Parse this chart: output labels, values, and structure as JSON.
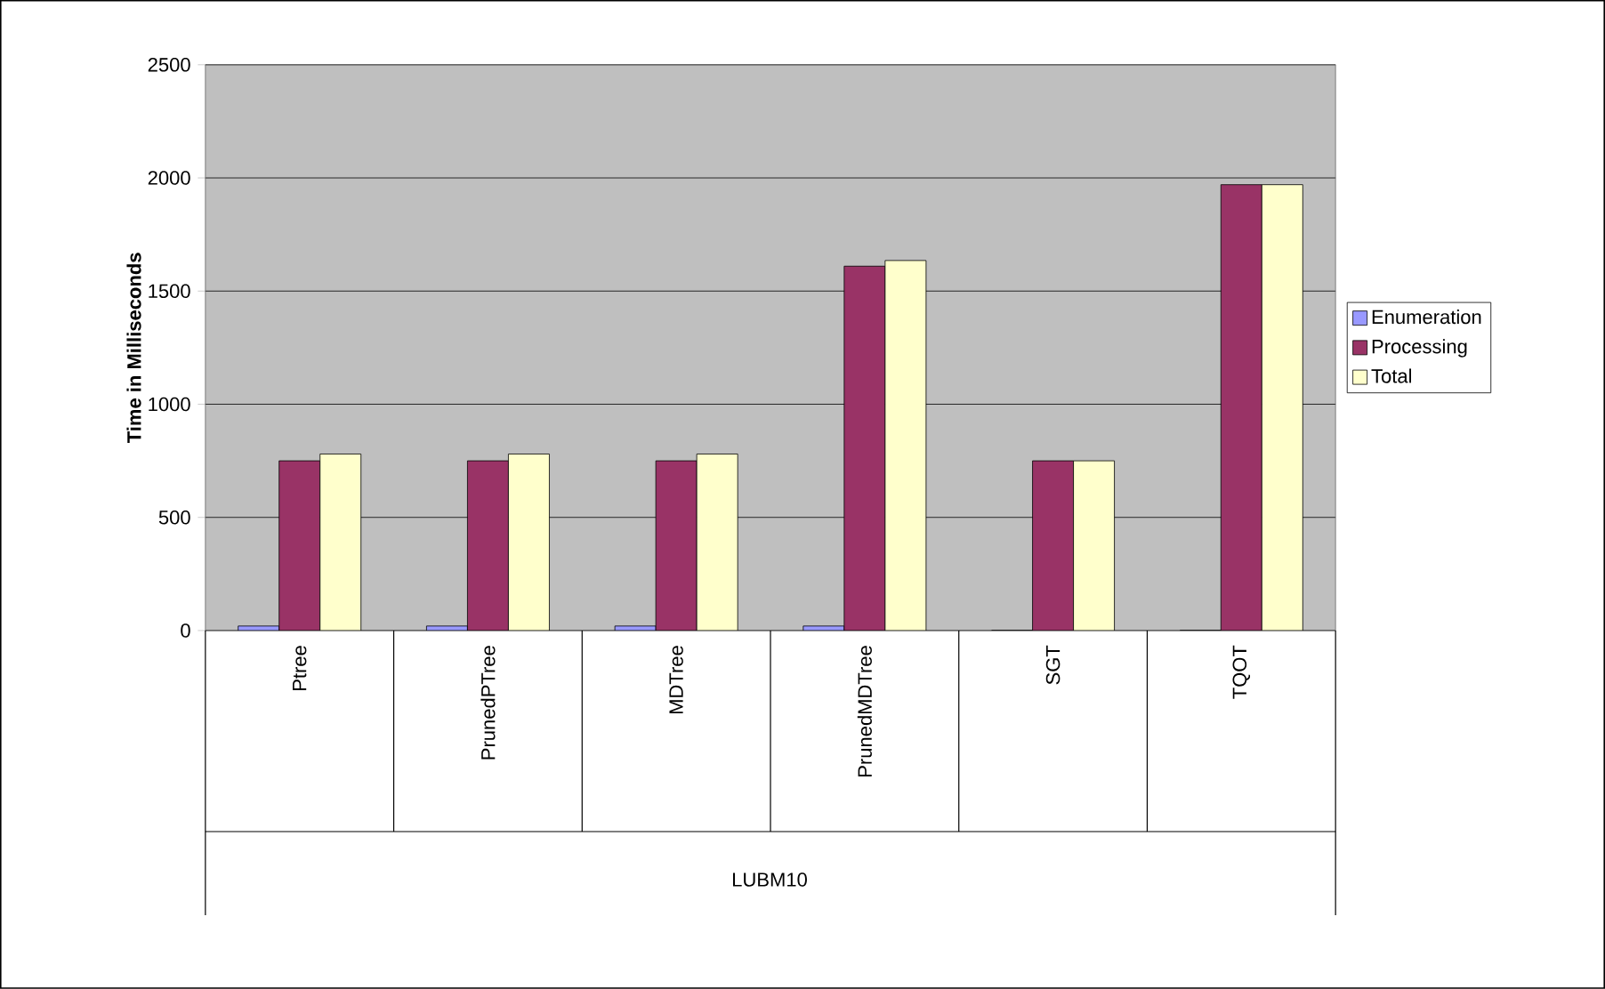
{
  "chart_data": {
    "type": "bar",
    "ylabel": "Time in Milliseconds",
    "annotations": [
      "LUBM10"
    ],
    "categories": [
      "Ptree",
      "PrunedPTree",
      "MDTree",
      "PrunedMDTree",
      "SGT",
      "TQOT"
    ],
    "series": [
      {
        "name": "Enumeration",
        "color": "#9999ff",
        "values": [
          20,
          20,
          20,
          20,
          0,
          0
        ]
      },
      {
        "name": "Processing",
        "color": "#993366",
        "values": [
          750,
          750,
          750,
          1610,
          750,
          1970
        ]
      },
      {
        "name": "Total",
        "color": "#ffffcc",
        "values": [
          780,
          780,
          780,
          1635,
          750,
          1970
        ]
      }
    ],
    "ylim": [
      0,
      2500
    ],
    "yticks": [
      0,
      500,
      1000,
      1500,
      2000,
      2500
    ],
    "grid": "y",
    "legend": "right"
  }
}
